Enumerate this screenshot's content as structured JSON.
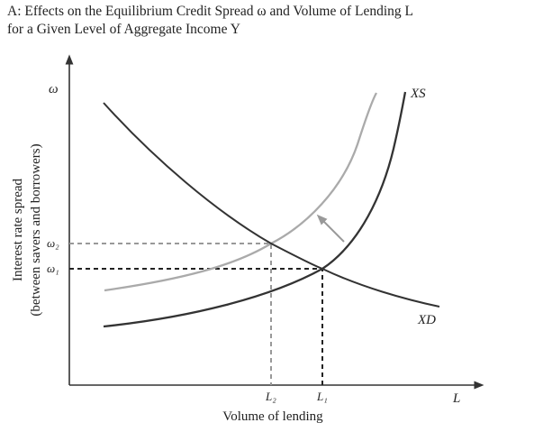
{
  "title": {
    "line1": "A: Effects on the Equilibrium Credit Spread ω and Volume of Lending L",
    "line2": "for a Given Level of Aggregate Income Y"
  },
  "axes": {
    "y_symbol": "ω",
    "y_label_line1": "Interest rate spread",
    "y_label_line2": "(between savers and borrowers)",
    "x_symbol": "L",
    "x_label": "Volume of lending"
  },
  "curves": {
    "supply": "XS",
    "demand": "XD"
  },
  "ticks": {
    "omega2": "ω₂",
    "omega1": "ω₁",
    "L2": "L₂",
    "L1": "L₁"
  },
  "colors": {
    "curve_dark": "#333333",
    "curve_light": "#aaaaaa",
    "dash_dark": "#222222",
    "dash_light": "#999999"
  }
}
